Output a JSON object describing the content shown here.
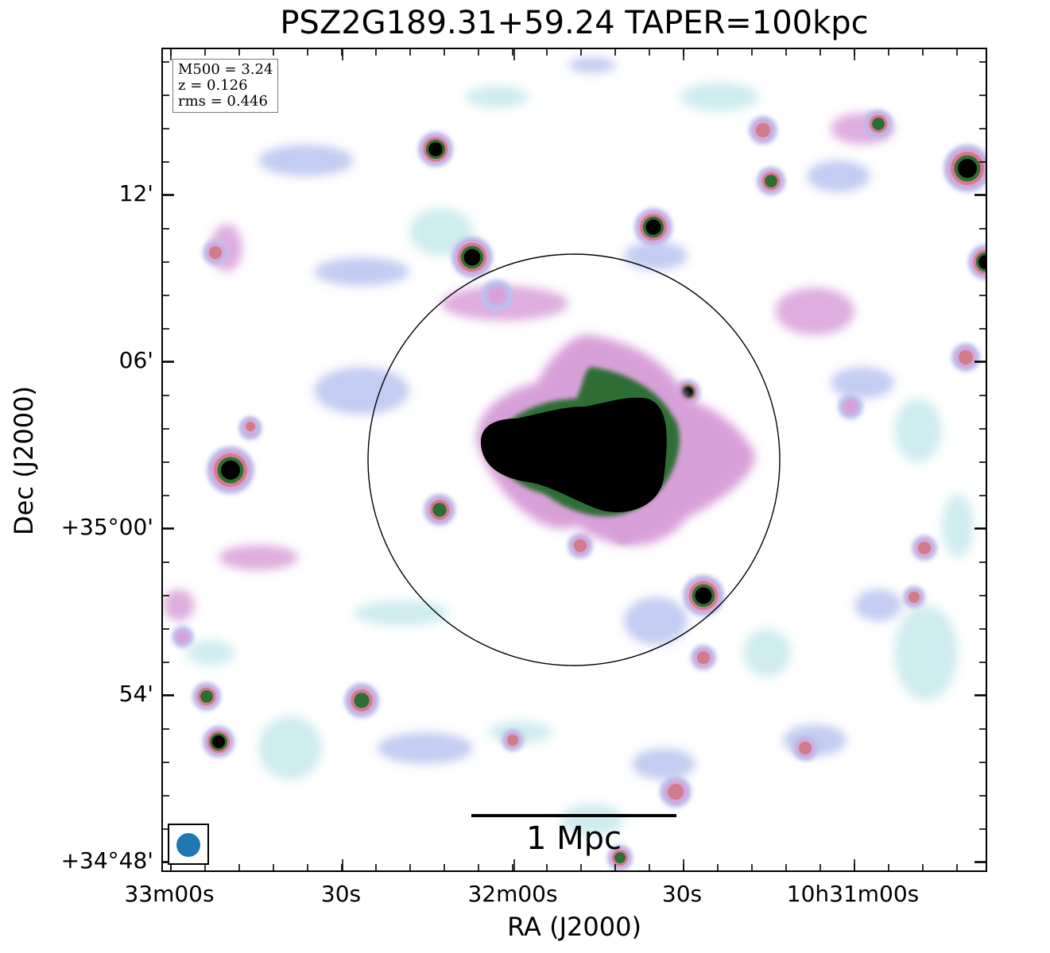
{
  "title": "PSZ2G189.31+59.24 TAPER=100kpc",
  "info_box": {
    "line1": "M500 = 3.24",
    "line2": "z = 0.126",
    "line3": "rms = 0.446"
  },
  "axes": {
    "xlabel": "RA (J2000)",
    "ylabel": "Dec (J2000)",
    "x_ticks": [
      "33m00s",
      "30s",
      "32m00s",
      "30s",
      "10h31m00s"
    ],
    "y_ticks": [
      "12'",
      "06'",
      "+35°00'",
      "54'",
      "+34°48'"
    ]
  },
  "scale_bar": {
    "label": "1 Mpc"
  },
  "beam": {
    "color": "#1f77b4",
    "shape": "circle"
  },
  "colormap": [
    "#ffffff",
    "#c7e9ec",
    "#b8c3ee",
    "#d8a0d8",
    "#d07c8c",
    "#2e6e34",
    "#000000"
  ]
}
